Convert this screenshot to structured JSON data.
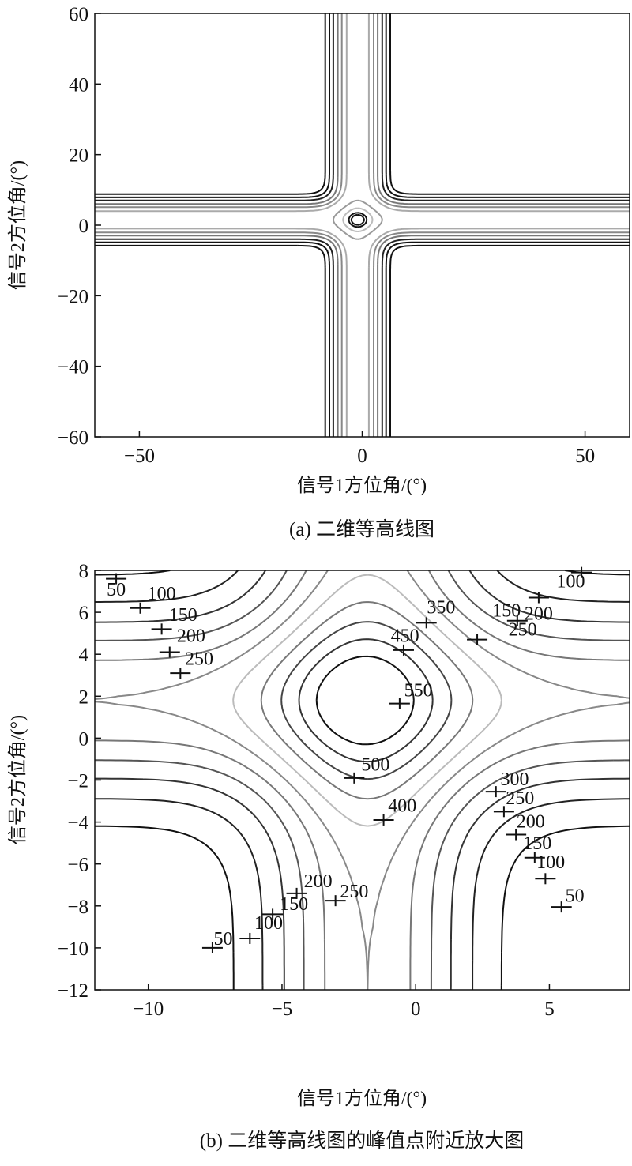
{
  "chart_data": [
    {
      "type": "contour",
      "caption": "(a) 二维等高线图",
      "xlabel": "信号1方位角/(°)",
      "ylabel": "信号2方位角/(°)",
      "xlim": [
        -60,
        60
      ],
      "ylim": [
        -60,
        60
      ],
      "xticks": [
        -50,
        0,
        50
      ],
      "yticks": [
        -60,
        -40,
        -20,
        0,
        20,
        40,
        60
      ],
      "peak": {
        "x": -1,
        "y": 1.5
      },
      "levels": [
        {
          "value": 0.12,
          "color": "#111111"
        },
        {
          "value": 0.2,
          "color": "#111111"
        },
        {
          "value": 0.3,
          "color": "#222222"
        },
        {
          "value": 0.45,
          "color": "#777777"
        },
        {
          "value": 0.6,
          "color": "#888888"
        },
        {
          "value": 0.78,
          "color": "#aaaaaa"
        },
        {
          "value": 1.3,
          "color": "#999999"
        },
        {
          "value": 1.65,
          "color": "#bbbbbb"
        },
        {
          "value": 1.88,
          "color": "#111111"
        },
        {
          "value": 1.98,
          "color": "#111111"
        }
      ]
    },
    {
      "type": "contour",
      "caption": "(b) 二维等高线图的峰值点附近放大图",
      "xlabel": "信号1方位角/(°)",
      "ylabel": "信号2方位角/(°)",
      "xlim": [
        -12,
        8
      ],
      "ylim": [
        -12,
        8
      ],
      "xticks": [
        -10,
        -5,
        0,
        5
      ],
      "yticks": [
        -12,
        -10,
        -8,
        -6,
        -4,
        -2,
        0,
        2,
        4,
        6,
        8
      ],
      "peak": {
        "x": -2.5,
        "y": 1.8
      },
      "levels": [
        {
          "value": 50,
          "color": "#111111"
        },
        {
          "value": 100,
          "color": "#222222"
        },
        {
          "value": 150,
          "color": "#333333"
        },
        {
          "value": 200,
          "color": "#555555"
        },
        {
          "value": 250,
          "color": "#777777"
        },
        {
          "value": 300,
          "color": "#888888"
        },
        {
          "value": 350,
          "color": "#bbbbbb"
        },
        {
          "value": 400,
          "color": "#777777"
        },
        {
          "value": 450,
          "color": "#444444"
        },
        {
          "value": 500,
          "color": "#333333"
        },
        {
          "value": 550,
          "color": "#111111"
        }
      ],
      "labels": [
        {
          "text": "50",
          "x": -11.2,
          "y": 7.1,
          "mx": -11.2,
          "my": 7.6
        },
        {
          "text": "100",
          "x": -9.5,
          "y": 6.9,
          "mx": -10.3,
          "my": 6.2
        },
        {
          "text": "150",
          "x": -8.7,
          "y": 5.9,
          "mx": -9.5,
          "my": 5.2
        },
        {
          "text": "200",
          "x": -8.4,
          "y": 4.9,
          "mx": -9.2,
          "my": 4.1
        },
        {
          "text": "250",
          "x": -8.1,
          "y": 3.8,
          "mx": -8.8,
          "my": 3.1
        },
        {
          "text": "350",
          "x": 0.95,
          "y": 6.25,
          "mx": 0.4,
          "my": 5.5
        },
        {
          "text": "450",
          "x": -0.4,
          "y": 4.9,
          "mx": -0.45,
          "my": 4.2
        },
        {
          "text": "550",
          "x": 0.1,
          "y": 2.3,
          "mx": -0.6,
          "my": 1.65
        },
        {
          "text": "500",
          "x": -1.5,
          "y": -1.25,
          "mx": -2.3,
          "my": -1.9
        },
        {
          "text": "400",
          "x": -0.5,
          "y": -3.2,
          "mx": -1.2,
          "my": -3.9
        },
        {
          "text": "100",
          "x": 5.8,
          "y": 7.5,
          "mx": 6.2,
          "my": 7.9
        },
        {
          "text": "150",
          "x": 3.4,
          "y": 6.1,
          "mx": 4.6,
          "my": 6.7
        },
        {
          "text": "200",
          "x": 4.6,
          "y": 5.95,
          "mx": 3.8,
          "my": 5.6
        },
        {
          "text": "250",
          "x": 4.0,
          "y": 5.2,
          "mx": 2.3,
          "my": 4.7
        },
        {
          "text": "300",
          "x": 3.7,
          "y": -1.95,
          "mx": 3.0,
          "my": -2.55
        },
        {
          "text": "250",
          "x": 3.9,
          "y": -2.85,
          "mx": 3.3,
          "my": -3.5
        },
        {
          "text": "200",
          "x": 4.3,
          "y": -3.95,
          "mx": 3.75,
          "my": -4.6
        },
        {
          "text": "150",
          "x": 4.55,
          "y": -5.0,
          "mx": 4.45,
          "my": -5.7
        },
        {
          "text": "100",
          "x": 5.05,
          "y": -5.9,
          "mx": 4.85,
          "my": -6.7
        },
        {
          "text": "50",
          "x": 5.95,
          "y": -7.5,
          "mx": 5.45,
          "my": -8.05
        },
        {
          "text": "200",
          "x": -3.65,
          "y": -6.8,
          "mx": -4.45,
          "my": -7.4
        },
        {
          "text": "150",
          "x": -4.55,
          "y": -7.9,
          "mx": -5.35,
          "my": -8.4
        },
        {
          "text": "100",
          "x": -5.5,
          "y": -8.8,
          "mx": -6.2,
          "my": -9.55
        },
        {
          "text": "250",
          "x": -2.3,
          "y": -7.3,
          "mx": -3.0,
          "my": -7.75
        },
        {
          "text": "50",
          "x": -7.2,
          "y": -9.55,
          "mx": -7.6,
          "my": -10.0
        }
      ]
    }
  ]
}
